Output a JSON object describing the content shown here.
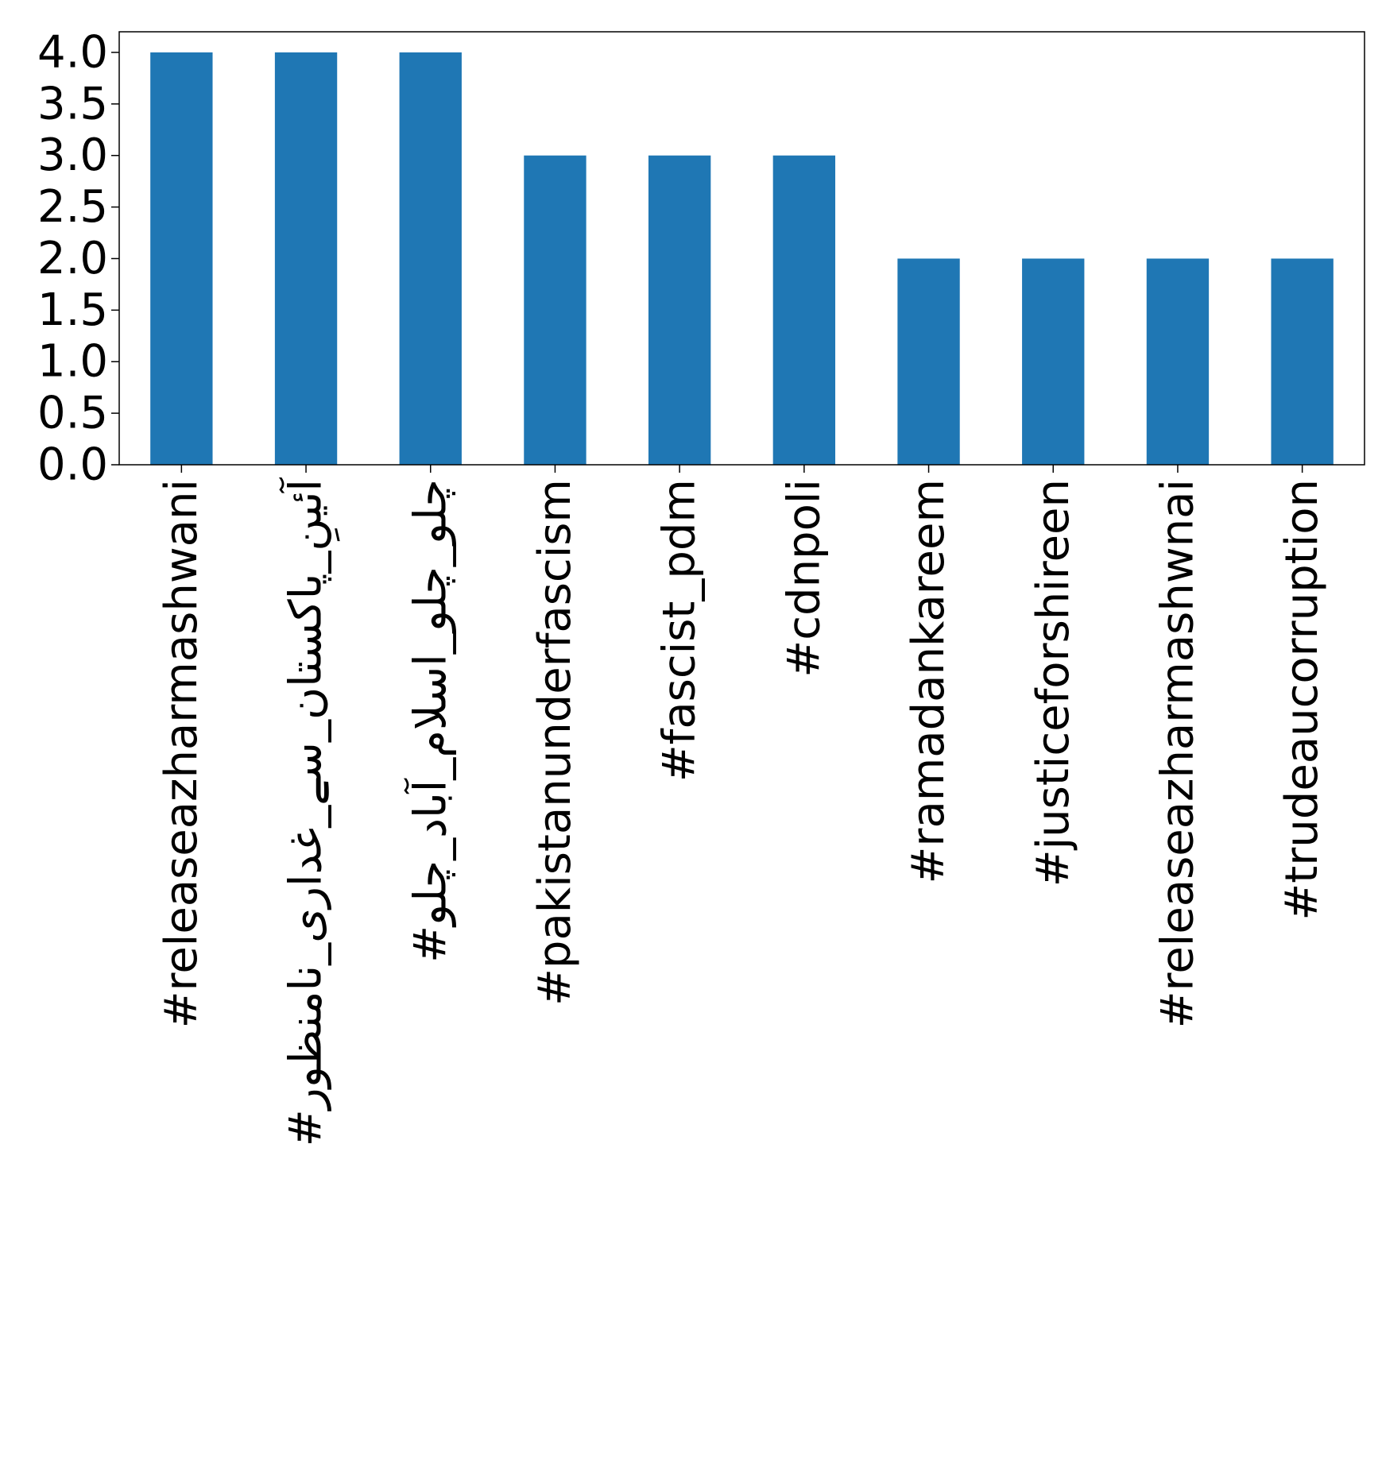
{
  "chart_data": {
    "type": "bar",
    "title": "",
    "xlabel": "",
    "ylabel": "",
    "categories": [
      "#releaseazharmashwani",
      "#آئینِ_پاکستان_سے_غداری_نامنظور",
      "#چلو_چلو_اسلام_آباد_چلو",
      "#pakistanunderfascism",
      "#fascist_pdm",
      "#cdnpoli",
      "#ramadankareem",
      "#justiceforshireen",
      "#releaseazharmashwnai",
      "#trudeaucorruption"
    ],
    "values": [
      4,
      4,
      4,
      3,
      3,
      3,
      2,
      2,
      2,
      2
    ],
    "ylim": [
      0,
      4.2
    ],
    "yticks": [
      "0.0",
      "0.5",
      "1.0",
      "1.5",
      "2.0",
      "2.5",
      "3.0",
      "3.5",
      "4.0"
    ],
    "bar_color": "#1f77b4",
    "grid": false,
    "legend": "none"
  }
}
